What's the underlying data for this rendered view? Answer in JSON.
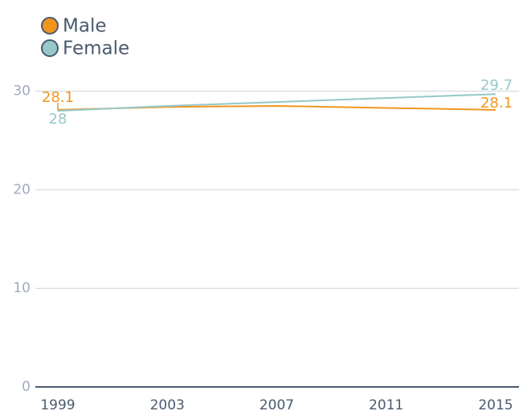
{
  "chart_data": {
    "type": "line",
    "x": [
      1999,
      2003,
      2007,
      2011,
      2015
    ],
    "series": [
      {
        "name": "Male",
        "color": "#f0961e",
        "values": [
          28.1,
          28.4,
          28.5,
          28.3,
          28.1
        ]
      },
      {
        "name": "Female",
        "color": "#96c8c8",
        "values": [
          28,
          28.5,
          28.9,
          29.3,
          29.7
        ]
      }
    ],
    "xlim": [
      1999,
      2015
    ],
    "xticks": [
      1999,
      2003,
      2007,
      2011,
      2015
    ],
    "ylim": [
      0,
      32
    ],
    "yticks": [
      0,
      10,
      20,
      30
    ],
    "grid": true
  }
}
